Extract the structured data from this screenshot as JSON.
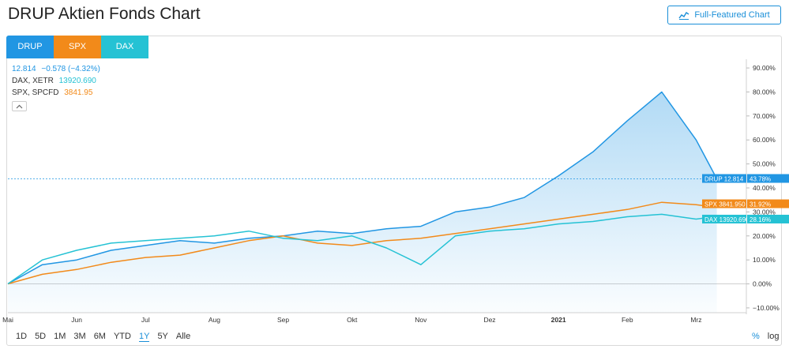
{
  "page": {
    "title": "DRUP Aktien Fonds Chart"
  },
  "toolbar": {
    "full_chart_label": "Full-Featured Chart"
  },
  "tabs": [
    {
      "label": "DRUP",
      "color": "#2196e3"
    },
    {
      "label": "SPX",
      "color": "#f28a1a"
    },
    {
      "label": "DAX",
      "color": "#25c2d4"
    }
  ],
  "legend": {
    "drup": {
      "price": "12.814",
      "change": "−0.578 (−4.32%)"
    },
    "dax": {
      "name": "DAX, XETR",
      "value": "13920.690"
    },
    "spx": {
      "name": "SPX, SPCFD",
      "value": "3841.95"
    }
  },
  "ranges": {
    "items": [
      "1D",
      "5D",
      "1M",
      "3M",
      "6M",
      "YTD",
      "1Y",
      "5Y",
      "Alle"
    ],
    "active": "1Y"
  },
  "scale": {
    "percent": "%",
    "log": "log"
  },
  "chart_data": {
    "type": "line",
    "x_labels": [
      "Mai",
      "Jun",
      "Jul",
      "Aug",
      "Sep",
      "Okt",
      "Nov",
      "Dez",
      "2021",
      "Feb",
      "Mrz"
    ],
    "y_ticks": [
      "90.00%",
      "80.00%",
      "70.00%",
      "60.00%",
      "50.00%",
      "40.00%",
      "30.00%",
      "20.00%",
      "10.00%",
      "0.00%",
      "−10.00%"
    ],
    "ylim": [
      -12,
      92
    ],
    "y_unit": "%",
    "grid": false,
    "series": [
      {
        "name": "DRUP",
        "color": "#2196e3",
        "fill": true,
        "last_label": "DRUP 12.814",
        "last_pct": "43.78%",
        "x": [
          0,
          0.5,
          1,
          1.5,
          2,
          2.5,
          3,
          3.5,
          4,
          4.5,
          5,
          5.5,
          6,
          6.5,
          7,
          7.5,
          8,
          8.5,
          9,
          9.5,
          10,
          10.3
        ],
        "values": [
          0,
          8,
          10,
          14,
          16,
          18,
          17,
          19,
          20,
          22,
          21,
          23,
          24,
          30,
          32,
          36,
          45,
          55,
          68,
          80,
          60,
          43.78
        ]
      },
      {
        "name": "SPX",
        "color": "#f28a1a",
        "fill": false,
        "last_label": "SPX 3841.950",
        "last_pct": "31.92%",
        "x": [
          0,
          0.5,
          1,
          1.5,
          2,
          2.5,
          3,
          3.5,
          4,
          4.5,
          5,
          5.5,
          6,
          6.5,
          7,
          7.5,
          8,
          8.5,
          9,
          9.5,
          10,
          10.3
        ],
        "values": [
          0,
          4,
          6,
          9,
          11,
          12,
          15,
          18,
          20,
          17,
          16,
          18,
          19,
          21,
          23,
          25,
          27,
          29,
          31,
          34,
          33,
          31.92
        ]
      },
      {
        "name": "DAX",
        "color": "#25c2d4",
        "fill": false,
        "last_label": "DAX 13920.690",
        "last_pct": "28.16%",
        "x": [
          0,
          0.5,
          1,
          1.5,
          2,
          2.5,
          3,
          3.5,
          4,
          4.5,
          5,
          5.5,
          6,
          6.5,
          7,
          7.5,
          8,
          8.5,
          9,
          9.5,
          10,
          10.3
        ],
        "values": [
          0,
          10,
          14,
          17,
          18,
          19,
          20,
          22,
          19,
          18,
          20,
          15,
          8,
          20,
          22,
          23,
          25,
          26,
          28,
          29,
          27,
          28.16
        ]
      }
    ]
  }
}
